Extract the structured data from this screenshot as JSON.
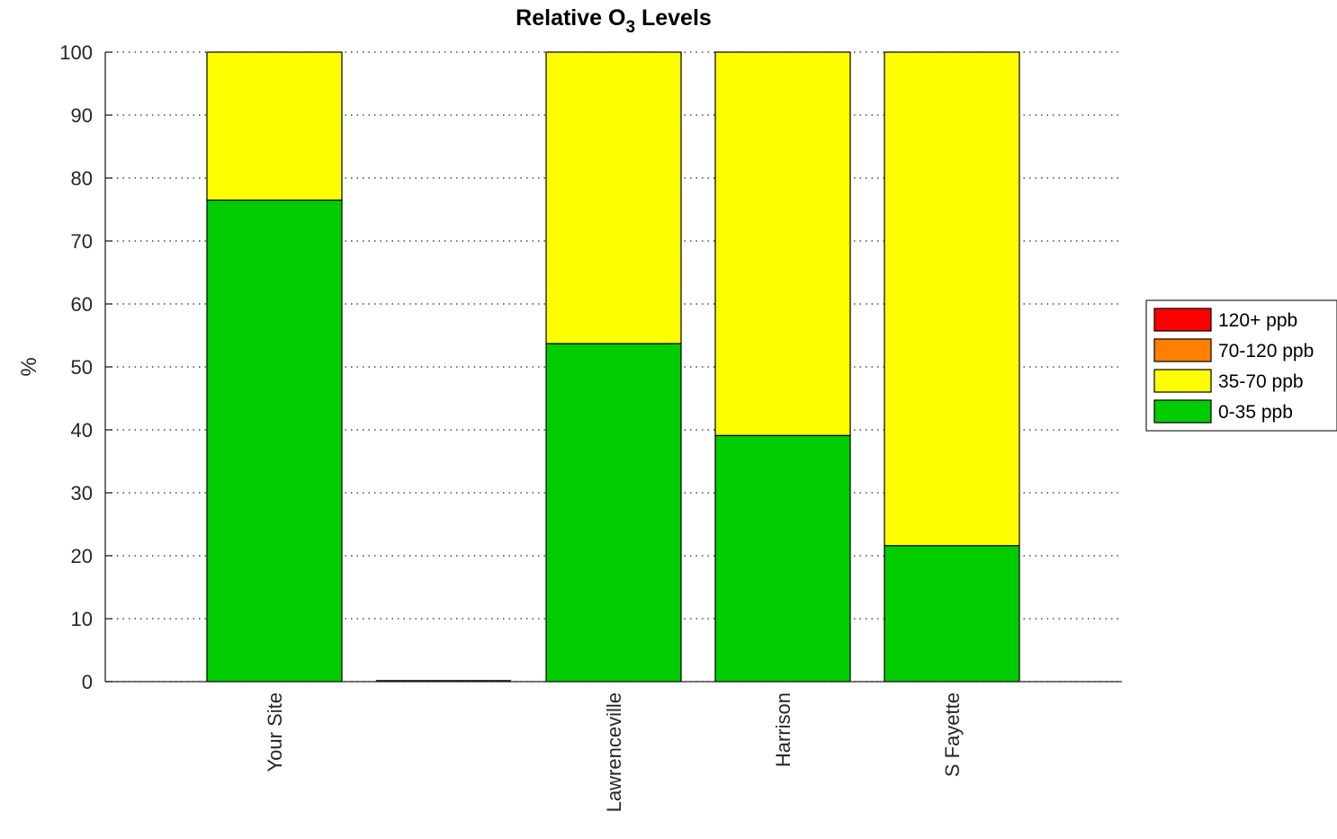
{
  "chart_data": {
    "type": "bar",
    "stacked": true,
    "title_main": "Relative O",
    "title_subscript": "3",
    "title_suffix": " Levels",
    "ylabel": "%",
    "xlabel": "",
    "ylim": [
      0,
      100
    ],
    "yticks": [
      0,
      10,
      20,
      30,
      40,
      50,
      60,
      70,
      80,
      90,
      100
    ],
    "grid": "horizontal-dotted",
    "legend_position": "outside-right",
    "categories": [
      "Your Site",
      "",
      "Lawrenceville",
      "Harrison",
      "S Fayette"
    ],
    "series": [
      {
        "name": "0-35 ppb",
        "color": "#00cc00",
        "values": [
          76.5,
          0,
          53.7,
          39.1,
          21.6
        ]
      },
      {
        "name": "35-70 ppb",
        "color": "#ffff00",
        "values": [
          23.5,
          0,
          46.3,
          60.9,
          78.4
        ]
      },
      {
        "name": "70-120 ppb",
        "color": "#ff8000",
        "values": [
          0,
          0,
          0,
          0,
          0
        ]
      },
      {
        "name": "120+ ppb",
        "color": "#ff0000",
        "values": [
          0,
          0,
          0,
          0,
          0
        ]
      }
    ],
    "legend_order": [
      "120+ ppb",
      "70-120 ppb",
      "35-70 ppb",
      "0-35 ppb"
    ]
  }
}
